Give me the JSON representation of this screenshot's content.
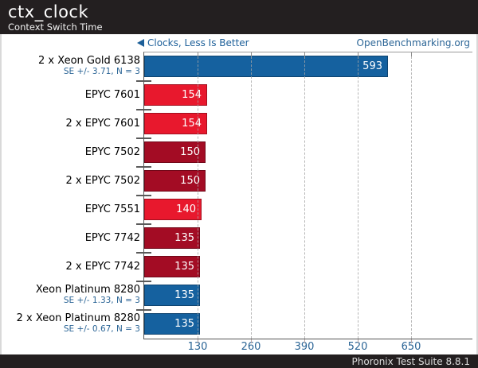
{
  "header": {
    "title": "ctx_clock",
    "subtitle": "Context Switch Time"
  },
  "legend": {
    "left": "Clocks, Less Is Better",
    "right": "OpenBenchmarking.org"
  },
  "footer": {
    "text": "Phoronix Test Suite 8.8.1"
  },
  "colors": {
    "blue": "#15619f",
    "red": "#e8182d",
    "dark_red": "#a30c24",
    "axis_text": "#2b6596",
    "header_bg": "#231f20"
  },
  "chart_data": {
    "type": "bar",
    "orientation": "horizontal",
    "title": "ctx_clock",
    "subtitle": "Context Switch Time",
    "value_unit": "Clocks",
    "better_direction": "Less Is Better",
    "x_ticks": [
      130,
      260,
      390,
      520,
      650
    ],
    "xlim": [
      0,
      800
    ],
    "grid": "dashed-vertical",
    "rows": [
      {
        "label": "2 x Xeon Gold 6138",
        "se": "SE +/- 3.71, N = 3",
        "value": 593,
        "color": "blue"
      },
      {
        "label": "EPYC 7601",
        "se": "",
        "value": 154,
        "color": "red"
      },
      {
        "label": "2 x EPYC 7601",
        "se": "",
        "value": 154,
        "color": "red"
      },
      {
        "label": "EPYC 7502",
        "se": "",
        "value": 150,
        "color": "dark_red"
      },
      {
        "label": "2 x EPYC 7502",
        "se": "",
        "value": 150,
        "color": "dark_red"
      },
      {
        "label": "EPYC 7551",
        "se": "",
        "value": 140,
        "color": "red"
      },
      {
        "label": "EPYC 7742",
        "se": "",
        "value": 135,
        "color": "dark_red"
      },
      {
        "label": "2 x EPYC 7742",
        "se": "",
        "value": 135,
        "color": "dark_red"
      },
      {
        "label": "Xeon Platinum 8280",
        "se": "SE +/- 1.33, N = 3",
        "value": 135,
        "color": "blue"
      },
      {
        "label": "2 x Xeon Platinum 8280",
        "se": "SE +/- 0.67, N = 3",
        "value": 135,
        "color": "blue"
      }
    ]
  }
}
